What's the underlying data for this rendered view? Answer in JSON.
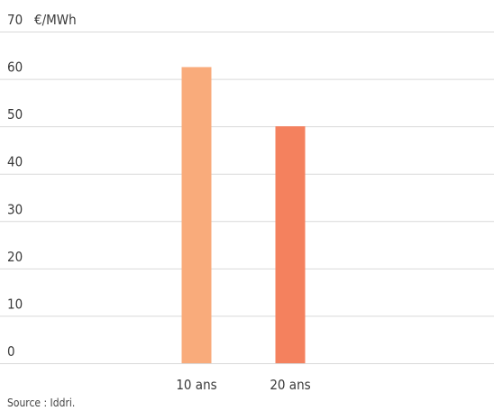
{
  "chart_data": {
    "type": "bar",
    "categories": [
      "10 ans",
      "20 ans"
    ],
    "values": [
      62.5,
      50
    ],
    "colors": [
      "#f9ab7b",
      "#f4815e"
    ],
    "ylim": [
      0,
      70
    ],
    "yticks": [
      0,
      10,
      20,
      30,
      40,
      50,
      60,
      70
    ],
    "ylabel": "€/MWh",
    "xlabel": "",
    "grid": true,
    "gridColor": "#d9d9d9"
  },
  "source": "Source : Iddri."
}
